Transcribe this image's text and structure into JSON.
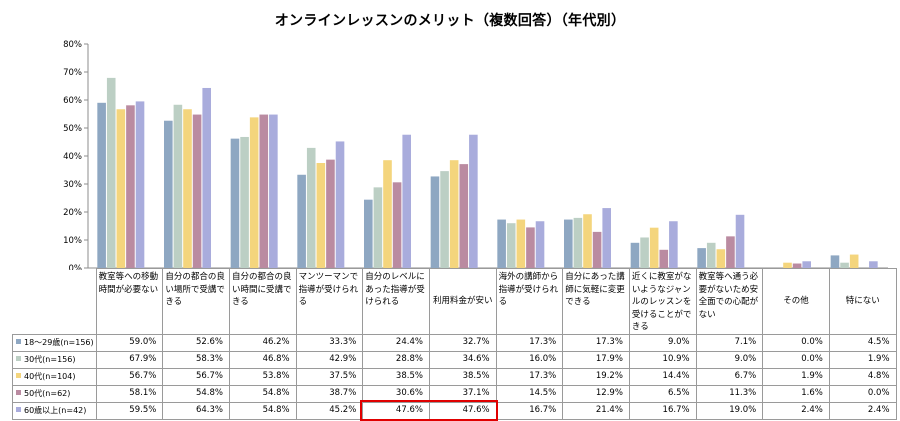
{
  "chart_data": {
    "type": "bar",
    "title": "オンラインレッスンのメリット（複数回答）（年代別）",
    "categories": [
      "教室等への移動時間が必要ない",
      "自分の都合の良い場所で受講できる",
      "自分の都合の良い時間に受講できる",
      "マンツーマンで指導が受けられる",
      "自分のレベルにあった指導が受けられる",
      "利用料金が安い",
      "海外の講師から指導が受けられる",
      "自分にあった講師に気軽に変更できる",
      "近くに教室がないようなジャンルのレッスンを受けることができる",
      "教室等へ通う必要がないため安全面での心配がない",
      "その他",
      "特にない"
    ],
    "series": [
      {
        "name": "18～29歳(n=156)",
        "color": "#8ea7c2",
        "values": [
          59.0,
          52.6,
          46.2,
          33.3,
          24.4,
          32.7,
          17.3,
          17.3,
          9.0,
          7.1,
          0.0,
          4.5
        ]
      },
      {
        "name": "30代(n=156)",
        "color": "#bccfc4",
        "values": [
          67.9,
          58.3,
          46.8,
          42.9,
          28.8,
          34.6,
          16.0,
          17.9,
          10.9,
          9.0,
          0.0,
          1.9
        ]
      },
      {
        "name": "40代(n=104)",
        "color": "#f4d57d",
        "values": [
          56.7,
          56.7,
          53.8,
          37.5,
          38.5,
          38.5,
          17.3,
          19.2,
          14.4,
          6.7,
          1.9,
          4.8
        ]
      },
      {
        "name": "50代(n=62)",
        "color": "#ba8ba1",
        "values": [
          58.1,
          54.8,
          54.8,
          38.7,
          30.6,
          37.1,
          14.5,
          12.9,
          6.5,
          11.3,
          1.6,
          0.0
        ]
      },
      {
        "name": "60歳以上(n=42)",
        "color": "#a9acdc",
        "values": [
          59.5,
          64.3,
          54.8,
          45.2,
          47.6,
          47.6,
          16.7,
          21.4,
          16.7,
          19.0,
          2.4,
          2.4
        ]
      }
    ],
    "y_ticks": [
      "0%",
      "10%",
      "20%",
      "30%",
      "40%",
      "50%",
      "60%",
      "70%",
      "80%"
    ],
    "ylim": [
      0,
      80
    ],
    "grid": false,
    "legend": "data table below chart",
    "highlight": {
      "series": "60歳以上(n=42)",
      "categories": [
        "自分のレベルにあった指導が受けられる",
        "利用料金が安い"
      ],
      "color": "#e00000"
    }
  }
}
